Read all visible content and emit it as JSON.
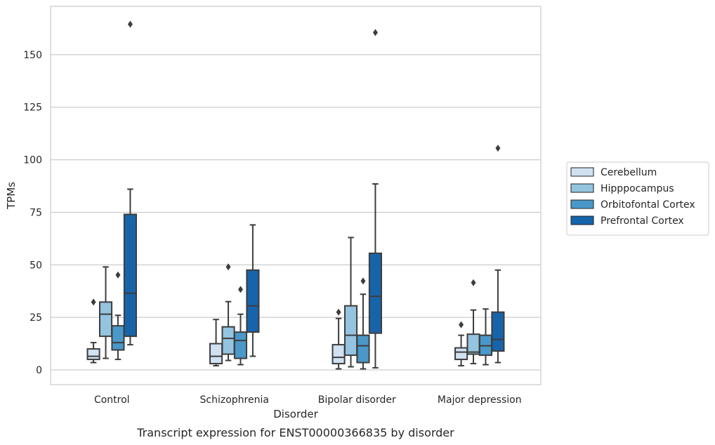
{
  "caption": "Transcript expression for ENST00000366835 by disorder",
  "chart_data": {
    "type": "boxplot",
    "title": "",
    "xlabel": "Disorder",
    "ylabel": "TPMs",
    "ylim": [
      -7,
      173
    ],
    "yticks": [
      0,
      25,
      50,
      75,
      100,
      125,
      150
    ],
    "grid": "horizontal",
    "legend_position": "outside-right",
    "categories": [
      "Control",
      "Schizophrenia",
      "Bipolar disorder",
      "Major depression"
    ],
    "series": [
      {
        "name": "Cerebellum",
        "color": "#d0e1f2",
        "boxes": [
          {
            "whislo": 3.5,
            "q1": 5.0,
            "med": 6.5,
            "q3": 10.0,
            "whishi": 13.0,
            "fliers": [
              32.3
            ]
          },
          {
            "whislo": 2.0,
            "q1": 3.0,
            "med": 6.5,
            "q3": 12.5,
            "whishi": 24.0,
            "fliers": []
          },
          {
            "whislo": 0.5,
            "q1": 3.0,
            "med": 6.0,
            "q3": 12.0,
            "whishi": 24.5,
            "fliers": [
              27.5
            ]
          },
          {
            "whislo": 2.0,
            "q1": 5.0,
            "med": 8.5,
            "q3": 10.5,
            "whishi": 16.5,
            "fliers": [
              21.5
            ]
          }
        ]
      },
      {
        "name": "Hipppocampus",
        "color": "#94c4df",
        "boxes": [
          {
            "whislo": 5.5,
            "q1": 16.0,
            "med": 26.5,
            "q3": 32.3,
            "whishi": 49.0,
            "fliers": []
          },
          {
            "whislo": 4.5,
            "q1": 7.5,
            "med": 15.0,
            "q3": 20.5,
            "whishi": 32.5,
            "fliers": [
              49.0
            ]
          },
          {
            "whislo": 1.5,
            "q1": 7.0,
            "med": 16.5,
            "q3": 30.5,
            "whishi": 63.0,
            "fliers": []
          },
          {
            "whislo": 3.0,
            "q1": 7.5,
            "med": 8.5,
            "q3": 17.0,
            "whishi": 28.5,
            "fliers": [
              41.5
            ]
          }
        ]
      },
      {
        "name": "Orbitofontal Cortex",
        "color": "#4a98c9",
        "boxes": [
          {
            "whislo": 5.0,
            "q1": 9.5,
            "med": 13.0,
            "q3": 21.0,
            "whishi": 26.0,
            "fliers": [
              45.2
            ]
          },
          {
            "whislo": 2.5,
            "q1": 5.5,
            "med": 14.0,
            "q3": 18.0,
            "whishi": 26.5,
            "fliers": [
              38.3
            ]
          },
          {
            "whislo": 0.5,
            "q1": 3.5,
            "med": 11.5,
            "q3": 16.5,
            "whishi": 36.0,
            "fliers": [
              42.3
            ]
          },
          {
            "whislo": 2.5,
            "q1": 7.0,
            "med": 11.5,
            "q3": 16.5,
            "whishi": 29.0,
            "fliers": []
          }
        ]
      },
      {
        "name": "Prefrontal Cortex",
        "color": "#1764ab",
        "boxes": [
          {
            "whislo": 12.0,
            "q1": 16.0,
            "med": 36.5,
            "q3": 74.0,
            "whishi": 86.0,
            "fliers": [
              164.5
            ]
          },
          {
            "whislo": 6.5,
            "q1": 18.0,
            "med": 30.5,
            "q3": 47.5,
            "whishi": 69.0,
            "fliers": []
          },
          {
            "whislo": 1.0,
            "q1": 17.5,
            "med": 35.0,
            "q3": 55.5,
            "whishi": 88.5,
            "fliers": [
              160.5
            ]
          },
          {
            "whislo": 3.5,
            "q1": 9.0,
            "med": 14.5,
            "q3": 27.5,
            "whishi": 47.5,
            "fliers": [
              105.5
            ]
          }
        ]
      }
    ]
  }
}
